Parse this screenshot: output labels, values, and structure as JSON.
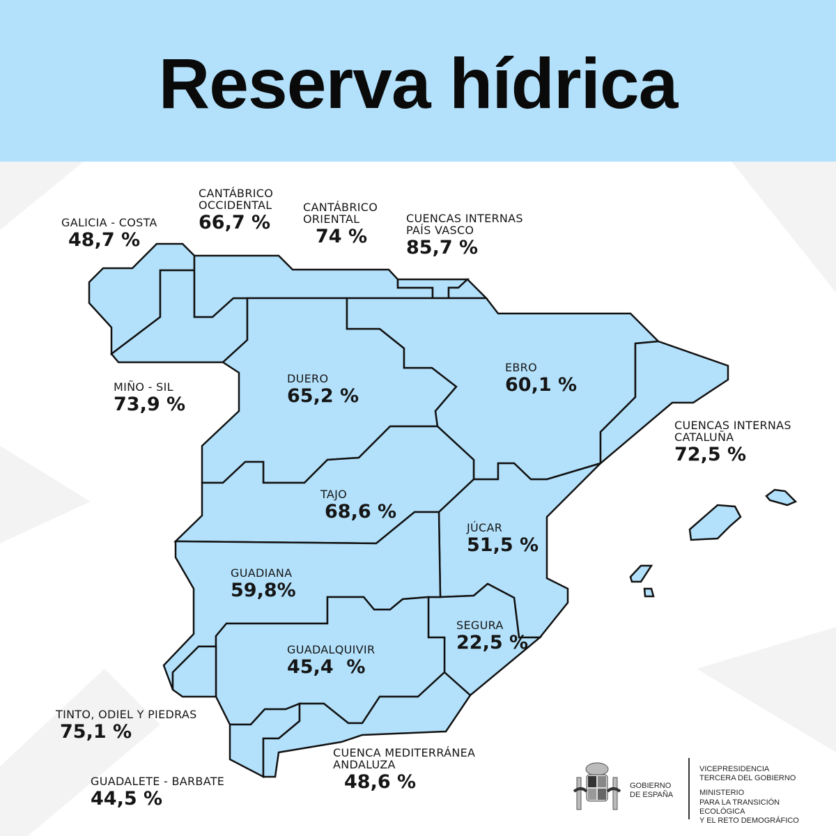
{
  "header": {
    "title": "Reserva hídrica"
  },
  "colors": {
    "header_bg": "#b3e0fb",
    "basin_fill": "#b3e1fb",
    "border": "#111111"
  },
  "basins": [
    {
      "id": "galicia-costa",
      "name": "GALICIA - COSTA",
      "value": "48,7 %"
    },
    {
      "id": "cantabrico-occidental",
      "name": "CANTÁBRICO\nOCCIDENTAL",
      "value": "66,7 %"
    },
    {
      "id": "cantabrico-oriental",
      "name": "CANTÁBRICO\nORIENTAL",
      "value": "74 %"
    },
    {
      "id": "pais-vasco",
      "name": "CUENCAS INTERNAS\nPAÍS VASCO",
      "value": "85,7 %"
    },
    {
      "id": "mino-sil",
      "name": "MIÑO - SIL",
      "value": "73,9 %"
    },
    {
      "id": "duero",
      "name": "DUERO",
      "value": "65,2 %"
    },
    {
      "id": "ebro",
      "name": "EBRO",
      "value": "60,1 %"
    },
    {
      "id": "cataluna",
      "name": "CUENCAS INTERNAS\nCATALUÑA",
      "value": "72,5 %"
    },
    {
      "id": "tajo",
      "name": "TAJO",
      "value": "68,6 %"
    },
    {
      "id": "jucar",
      "name": "JÚCAR",
      "value": "51,5 %"
    },
    {
      "id": "guadiana",
      "name": "GUADIANA",
      "value": "59,8%"
    },
    {
      "id": "segura",
      "name": "SEGURA",
      "value": "22,5 %"
    },
    {
      "id": "guadalquivir",
      "name": "GUADALQUIVIR",
      "value": "45,4  %"
    },
    {
      "id": "tinto-odiel",
      "name": "TINTO, ODIEL Y PIEDRAS",
      "value": "75,1 %"
    },
    {
      "id": "guadalete-barbate",
      "name": "GUADALETE - BARBATE",
      "value": "44,5 %"
    },
    {
      "id": "mediterranea-andaluza",
      "name": "CUENCA MEDITERRÁNEA\nANDALUZA",
      "value": "48,6 %"
    }
  ],
  "footer": {
    "gobierno": "GOBIERNO\nDE ESPAÑA",
    "vicepresidencia": [
      "VICEPRESIDENCIA",
      "TERCERA DEL GOBIERNO"
    ],
    "ministerio": [
      "MINISTERIO",
      "PARA LA TRANSICIÓN ECOLÓGICA",
      "Y EL RETO DEMOGRÁFICO"
    ],
    "logo_icon": "coat-of-arms-of-spain"
  }
}
